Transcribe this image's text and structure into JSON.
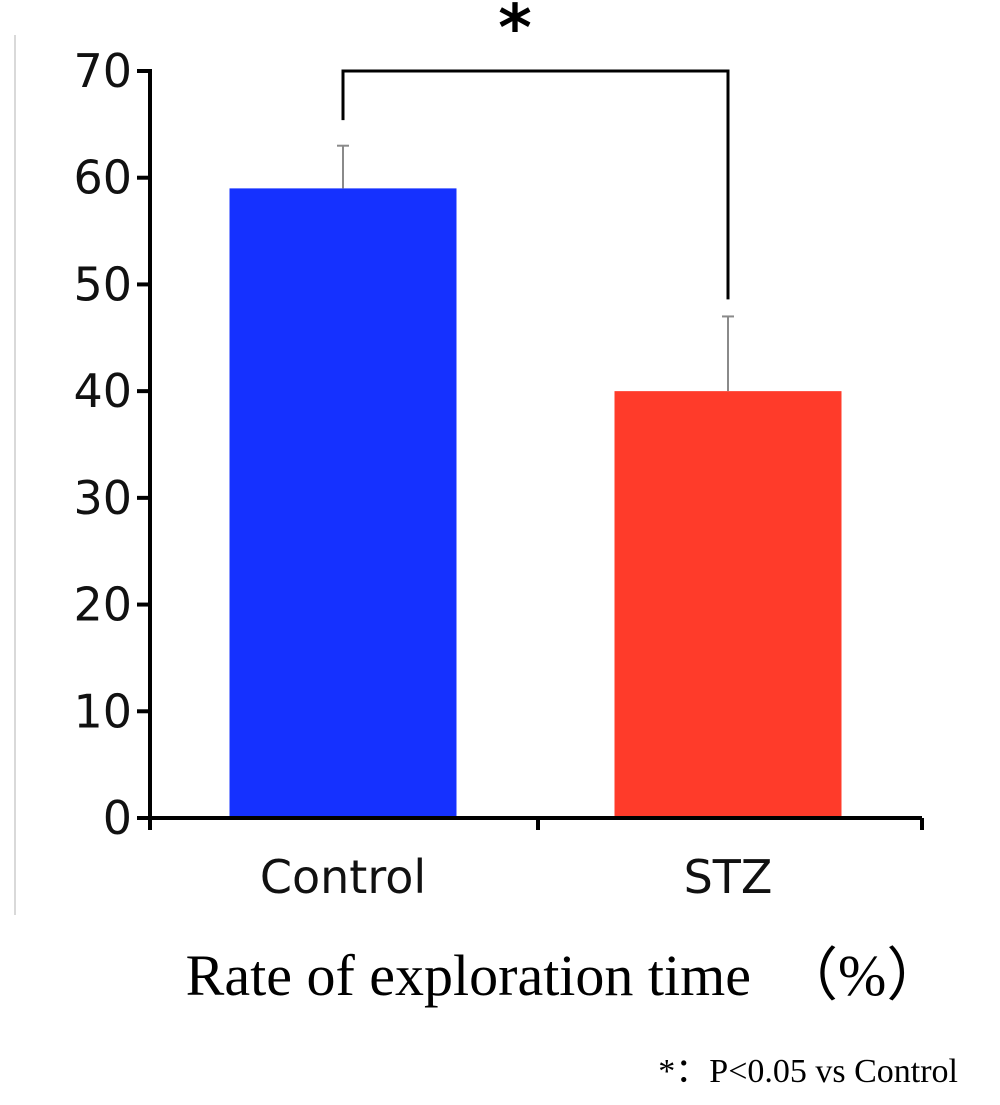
{
  "chart_data": {
    "type": "bar",
    "categories": [
      "Control",
      "STZ"
    ],
    "values": [
      59,
      40
    ],
    "errors": [
      4,
      7
    ],
    "colors": [
      "#1531ff",
      "#ff3b2a"
    ],
    "ylim": [
      0,
      70
    ],
    "yticks": [
      "0",
      "10",
      "20",
      "30",
      "40",
      "50",
      "60",
      "70"
    ],
    "xlabel": "Rate of exploration time　（%）",
    "ylabel": "",
    "significance": {
      "marker": "*",
      "between": [
        "Control",
        "STZ"
      ]
    },
    "footnote": "*：P<0.05  vs Control",
    "grid": false
  }
}
